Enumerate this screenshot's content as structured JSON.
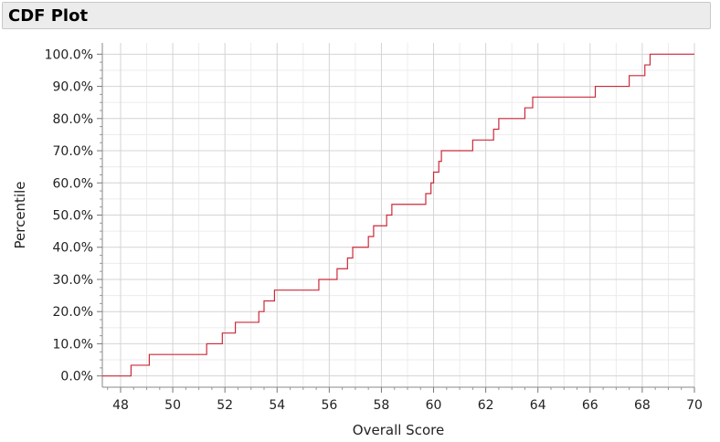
{
  "panel": {
    "title": "CDF Plot"
  },
  "chart_data": {
    "type": "line",
    "step": true,
    "title": "",
    "xlabel": "Overall Score",
    "ylabel": "Percentile",
    "xlim": [
      47.3,
      70
    ],
    "ylim": [
      -3.5,
      103.5
    ],
    "x_ticks": [
      48,
      50,
      52,
      54,
      56,
      58,
      60,
      62,
      64,
      66,
      68,
      70
    ],
    "x_tick_labels": [
      "48",
      "50",
      "52",
      "54",
      "56",
      "58",
      "60",
      "62",
      "64",
      "66",
      "68",
      "70"
    ],
    "y_ticks": [
      0,
      10,
      20,
      30,
      40,
      50,
      60,
      70,
      80,
      90,
      100
    ],
    "y_tick_labels": [
      "0.0%",
      "10.0%",
      "20.0%",
      "30.0%",
      "40.0%",
      "50.0%",
      "60.0%",
      "70.0%",
      "80.0%",
      "90.0%",
      "100.0%"
    ],
    "grid": true,
    "line_color": "#cc2a3a",
    "series": [
      {
        "name": "",
        "x": [
          48.4,
          49.1,
          51.3,
          51.9,
          52.4,
          53.3,
          53.5,
          53.9,
          55.6,
          56.3,
          56.7,
          56.9,
          57.5,
          57.7,
          58.2,
          58.4,
          59.7,
          59.9,
          60.0,
          60.2,
          60.3,
          61.5,
          62.3,
          62.5,
          63.5,
          63.8,
          66.2,
          67.5,
          68.1,
          68.3
        ],
        "y": [
          3.33,
          6.67,
          10.0,
          13.33,
          16.67,
          20.0,
          23.33,
          26.67,
          30.0,
          33.33,
          36.67,
          40.0,
          43.33,
          46.67,
          50.0,
          53.33,
          56.67,
          60.0,
          63.33,
          66.67,
          70.0,
          73.33,
          76.67,
          80.0,
          83.33,
          86.67,
          90.0,
          93.33,
          96.67,
          100.0
        ]
      }
    ]
  }
}
